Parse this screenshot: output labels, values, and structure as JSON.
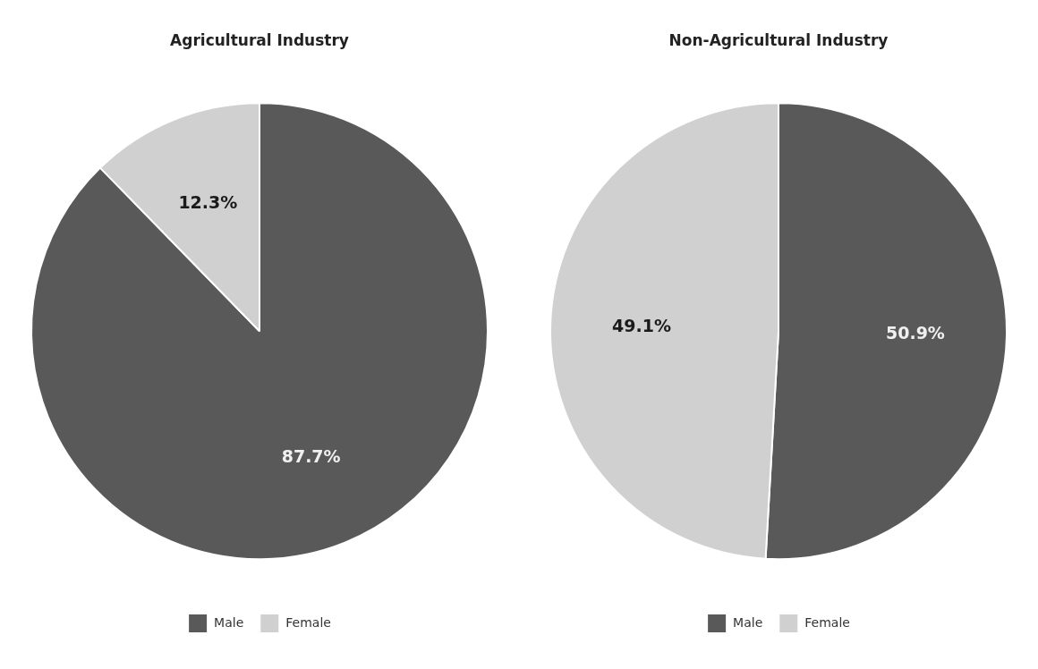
{
  "chart_data": [
    {
      "type": "pie",
      "title": "Agricultural Industry",
      "categories": [
        "Male",
        "Female"
      ],
      "values": [
        87.7,
        12.3
      ],
      "value_labels": [
        "87.7%",
        "12.3%"
      ],
      "colors": [
        "#595959",
        "#d0d0d0"
      ],
      "data_labels": true,
      "legend": "bottom"
    },
    {
      "type": "pie",
      "title": "Non-Agricultural Industry",
      "categories": [
        "Male",
        "Female"
      ],
      "values": [
        50.9,
        49.1
      ],
      "value_labels": [
        "50.9%",
        "49.1%"
      ],
      "colors": [
        "#595959",
        "#d0d0d0"
      ],
      "data_labels": true,
      "legend": "bottom"
    }
  ]
}
